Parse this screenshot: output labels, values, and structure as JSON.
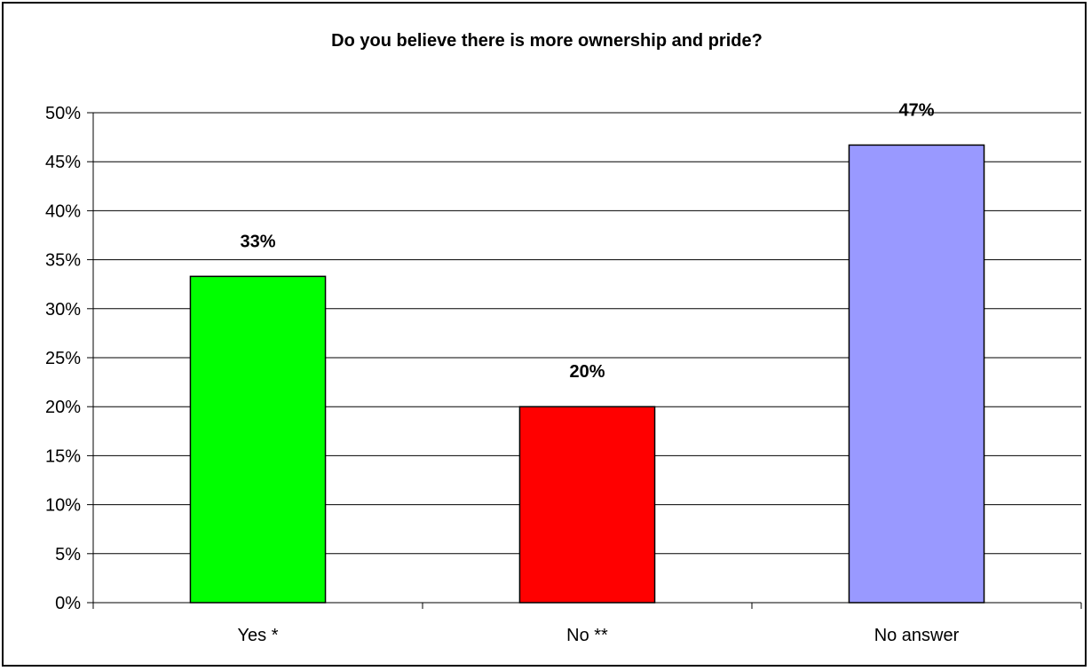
{
  "chart_data": {
    "type": "bar",
    "title": "Do you believe there is more ownership and pride?",
    "xlabel": "",
    "ylabel": "",
    "categories": [
      "Yes *",
      "No **",
      "No answer"
    ],
    "values": [
      33.3,
      20.0,
      46.7
    ],
    "data_labels": [
      "33%",
      "20%",
      "47%"
    ],
    "colors": [
      "#00FF00",
      "#FF0000",
      "#9999FF"
    ],
    "ylim": [
      0,
      50
    ],
    "yticks": [
      0,
      5,
      10,
      15,
      20,
      25,
      30,
      35,
      40,
      45,
      50
    ],
    "ytick_labels": [
      "0%",
      "5%",
      "10%",
      "15%",
      "20%",
      "25%",
      "30%",
      "35%",
      "40%",
      "45%",
      "50%"
    ],
    "grid": true,
    "legend": "none"
  }
}
